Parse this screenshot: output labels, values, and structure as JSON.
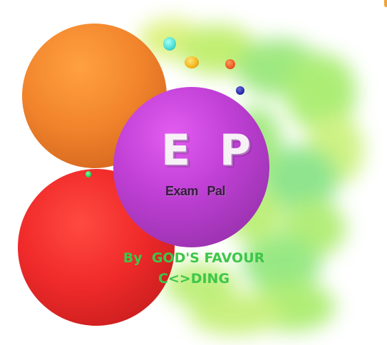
{
  "splash": {
    "logo": {
      "letters": "E P",
      "app_name": "Exam  Pal"
    },
    "credit": {
      "line1": "By  GOD'S FAVOUR",
      "line2": "C<>DING"
    }
  },
  "colors": {
    "credit_text": "#3ec64a",
    "orb_orange": "#f2852c",
    "orb_red": "#f02a2a",
    "orb_purple": "#c040d6",
    "background_cloud": "#8cea5a"
  }
}
